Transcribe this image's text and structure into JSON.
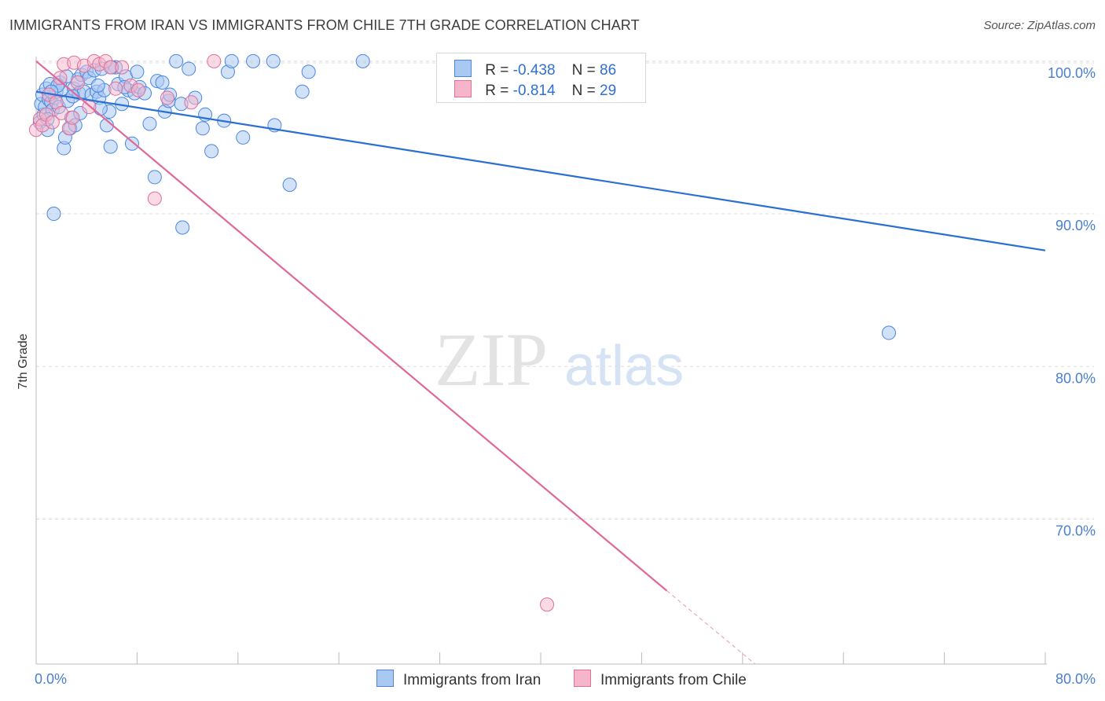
{
  "title": "IMMIGRANTS FROM IRAN VS IMMIGRANTS FROM CHILE 7TH GRADE CORRELATION CHART",
  "source": "Source: ZipAtlas.com",
  "watermark": {
    "zip": "ZIP",
    "atlas": "atlas"
  },
  "colors": {
    "iran": "#4a86e0",
    "iran_fill": "#a9c8f2",
    "chile": "#e07096",
    "chile_fill": "#f5b6cb",
    "tick_text": "#4a7fcf",
    "grid": "#dcdcdc"
  },
  "legend": {
    "iran": {
      "r_label": "R = ",
      "r_value": "-0.438",
      "n_label": "N = ",
      "n_value": "86"
    },
    "chile": {
      "r_label": "R = ",
      "r_value": "-0.814",
      "n_label": "N = ",
      "n_value": "29"
    }
  },
  "bottom_legend": {
    "iran": "Immigrants from Iran",
    "chile": "Immigrants from Chile"
  },
  "chart_data": {
    "type": "scatter",
    "title": "IMMIGRANTS FROM IRAN VS IMMIGRANTS FROM CHILE 7TH GRADE CORRELATION CHART",
    "xlabel": "",
    "ylabel": "7th Grade",
    "xlim": [
      0,
      80
    ],
    "ylim": [
      60.5,
      100.3
    ],
    "x_ticks": [
      "0.0%",
      "80.0%"
    ],
    "y_ticks": [
      {
        "value": 100,
        "label": "100.0%"
      },
      {
        "value": 90,
        "label": "90.0%"
      },
      {
        "value": 80,
        "label": "80.0%"
      },
      {
        "value": 70,
        "label": "70.0%"
      }
    ],
    "series": [
      {
        "name": "Immigrants from Iran",
        "trend": {
          "x": [
            0,
            80
          ],
          "y": [
            98.0,
            87.6
          ]
        },
        "points": [
          [
            0.3,
            96.0
          ],
          [
            0.4,
            97.2
          ],
          [
            0.5,
            97.8
          ],
          [
            0.6,
            96.5
          ],
          [
            0.7,
            97.0
          ],
          [
            0.8,
            98.2
          ],
          [
            0.9,
            95.5
          ],
          [
            1.0,
            97.5
          ],
          [
            1.1,
            98.5
          ],
          [
            1.2,
            97.3
          ],
          [
            1.3,
            96.8
          ],
          [
            1.4,
            90.0
          ],
          [
            1.5,
            97.6
          ],
          [
            1.6,
            98.0
          ],
          [
            1.8,
            97.0
          ],
          [
            1.9,
            98.6
          ],
          [
            2.0,
            98.1
          ],
          [
            2.2,
            94.3
          ],
          [
            2.3,
            95.0
          ],
          [
            2.5,
            97.4
          ],
          [
            2.7,
            95.6
          ],
          [
            2.8,
            96.3
          ],
          [
            3.0,
            98.2
          ],
          [
            3.1,
            95.8
          ],
          [
            3.3,
            98.8
          ],
          [
            3.4,
            97.9
          ],
          [
            3.6,
            99.1
          ],
          [
            3.8,
            98.0
          ],
          [
            4.0,
            99.3
          ],
          [
            4.2,
            98.9
          ],
          [
            4.4,
            97.8
          ],
          [
            4.6,
            99.4
          ],
          [
            4.8,
            98.0
          ],
          [
            5.0,
            97.6
          ],
          [
            5.2,
            99.5
          ],
          [
            5.4,
            98.1
          ],
          [
            5.6,
            95.8
          ],
          [
            5.8,
            96.7
          ],
          [
            5.9,
            94.4
          ],
          [
            6.3,
            99.6
          ],
          [
            6.5,
            98.5
          ],
          [
            6.8,
            97.2
          ],
          [
            7.1,
            99.0
          ],
          [
            7.3,
            98.1
          ],
          [
            7.6,
            94.6
          ],
          [
            7.8,
            97.9
          ],
          [
            8.2,
            98.3
          ],
          [
            8.6,
            97.9
          ],
          [
            9.4,
            92.4
          ],
          [
            9.6,
            98.7
          ],
          [
            10.0,
            98.6
          ],
          [
            10.2,
            96.7
          ],
          [
            10.5,
            97.4
          ],
          [
            10.6,
            97.8
          ],
          [
            11.1,
            100.0
          ],
          [
            11.5,
            97.2
          ],
          [
            11.6,
            89.1
          ],
          [
            12.1,
            99.5
          ],
          [
            13.2,
            95.6
          ],
          [
            13.4,
            96.5
          ],
          [
            13.9,
            94.1
          ],
          [
            14.9,
            96.1
          ],
          [
            15.2,
            99.3
          ],
          [
            15.5,
            100.0
          ],
          [
            16.4,
            95.0
          ],
          [
            17.2,
            100.0
          ],
          [
            18.8,
            100.0
          ],
          [
            18.9,
            95.8
          ],
          [
            20.1,
            91.9
          ],
          [
            21.1,
            98.0
          ],
          [
            21.6,
            99.3
          ],
          [
            25.9,
            100.0
          ],
          [
            67.6,
            82.2
          ],
          [
            2.4,
            99.0
          ],
          [
            1.7,
            98.4
          ],
          [
            0.9,
            96.2
          ],
          [
            6.0,
            99.6
          ],
          [
            3.5,
            96.6
          ],
          [
            4.9,
            98.4
          ],
          [
            8.0,
            99.3
          ],
          [
            12.6,
            97.6
          ],
          [
            1.2,
            98.0
          ],
          [
            2.9,
            97.7
          ],
          [
            5.1,
            96.9
          ],
          [
            7.0,
            98.3
          ],
          [
            9.0,
            95.9
          ]
        ]
      },
      {
        "name": "Immigrants from Chile",
        "trend": {
          "x": [
            0,
            50
          ],
          "y": [
            100.0,
            65.3
          ]
        },
        "trend_dashed_extension": {
          "x": [
            50,
            57
          ],
          "y": [
            65.3,
            60.5
          ]
        },
        "points": [
          [
            0.0,
            95.5
          ],
          [
            0.3,
            96.2
          ],
          [
            0.5,
            95.8
          ],
          [
            0.8,
            96.5
          ],
          [
            1.0,
            97.8
          ],
          [
            1.3,
            96.0
          ],
          [
            1.6,
            97.3
          ],
          [
            2.0,
            96.6
          ],
          [
            2.2,
            99.8
          ],
          [
            2.6,
            95.6
          ],
          [
            3.0,
            99.9
          ],
          [
            3.3,
            98.6
          ],
          [
            3.8,
            99.7
          ],
          [
            4.2,
            97.0
          ],
          [
            4.6,
            100.0
          ],
          [
            5.0,
            99.8
          ],
          [
            5.5,
            100.0
          ],
          [
            5.9,
            99.6
          ],
          [
            6.3,
            98.2
          ],
          [
            6.8,
            99.6
          ],
          [
            7.5,
            98.4
          ],
          [
            8.1,
            98.1
          ],
          [
            9.4,
            91.0
          ],
          [
            10.4,
            97.6
          ],
          [
            12.3,
            97.3
          ],
          [
            14.1,
            100.0
          ],
          [
            40.5,
            64.4
          ],
          [
            1.9,
            98.9
          ],
          [
            2.9,
            96.3
          ]
        ]
      }
    ]
  }
}
